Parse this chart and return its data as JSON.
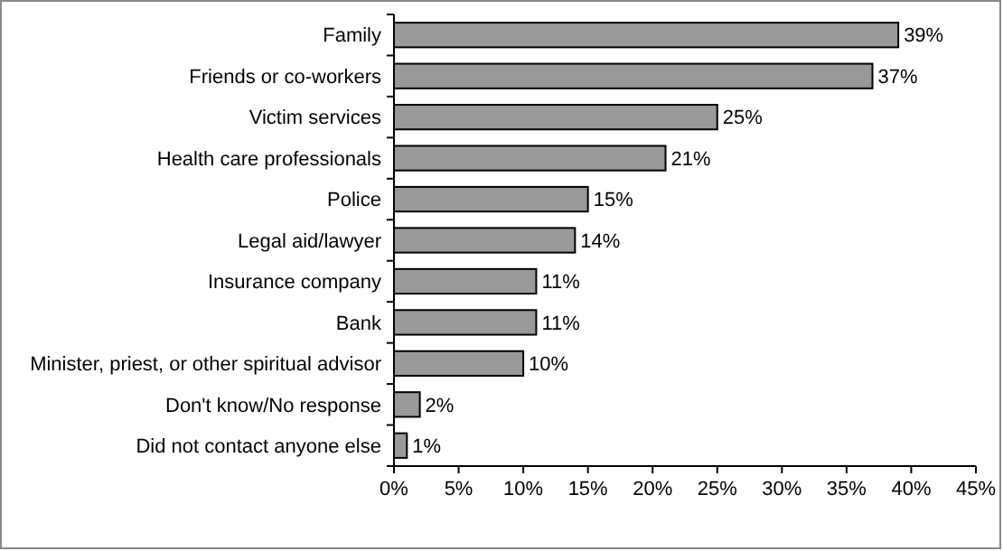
{
  "chart_data": {
    "type": "bar",
    "orientation": "horizontal",
    "categories": [
      "Family",
      "Friends or co-workers",
      "Victim services",
      "Health care professionals",
      "Police",
      "Legal aid/lawyer",
      "Insurance company",
      "Bank",
      "Minister, priest, or other spiritual advisor",
      "Don't know/No response",
      "Did not contact anyone else"
    ],
    "values": [
      39,
      37,
      25,
      21,
      15,
      14,
      11,
      11,
      10,
      2,
      1
    ],
    "value_labels": [
      "39%",
      "37%",
      "25%",
      "21%",
      "15%",
      "14%",
      "11%",
      "11%",
      "10%",
      "2%",
      "1%"
    ],
    "color": "#999999",
    "xlim": [
      0,
      45
    ],
    "xticks": [
      {
        "value": 0,
        "label": "0%"
      },
      {
        "value": 5,
        "label": "5%"
      },
      {
        "value": 10,
        "label": "10%"
      },
      {
        "value": 15,
        "label": "15%"
      },
      {
        "value": 20,
        "label": "20%"
      },
      {
        "value": 25,
        "label": "25%"
      },
      {
        "value": 30,
        "label": "30%"
      },
      {
        "value": 35,
        "label": "35%"
      },
      {
        "value": 40,
        "label": "40%"
      },
      {
        "value": 45,
        "label": "45%"
      }
    ],
    "grid": false
  }
}
